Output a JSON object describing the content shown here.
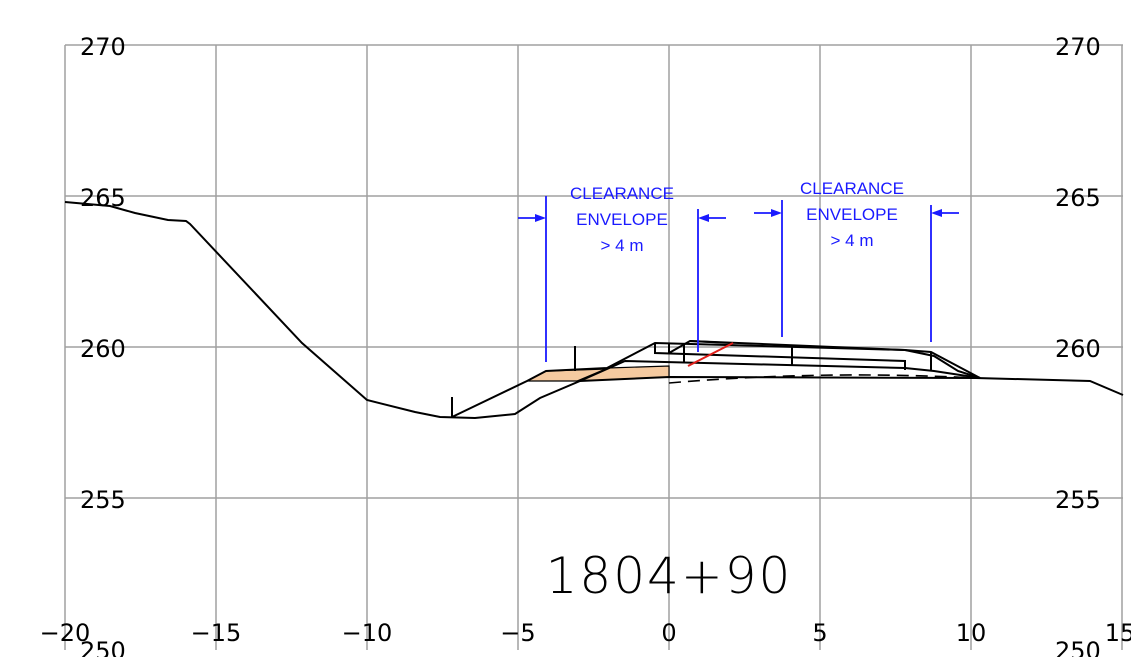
{
  "drawing": {
    "station_label": "1804+90",
    "x_ticks": [
      "−20",
      "−15",
      "−10",
      "−5",
      "0",
      "5",
      "10",
      "15"
    ],
    "y_left_ticks": [
      "270",
      "265",
      "260",
      "255",
      "250"
    ],
    "y_right_ticks": [
      "270",
      "265",
      "260",
      "255",
      "250"
    ],
    "clearance_left": {
      "line1": "CLEARANCE",
      "line2": "ENVELOPE",
      "line3": "> 4 m"
    },
    "clearance_right": {
      "line1": "CLEARANCE",
      "line2": "ENVELOPE",
      "line3": "> 4 m"
    },
    "colors": {
      "grid": "#a0a0a0",
      "profile": "#000000",
      "annotation": "#1a1aff",
      "fill": "#f5caa0",
      "red_line": "#e0201b"
    }
  }
}
